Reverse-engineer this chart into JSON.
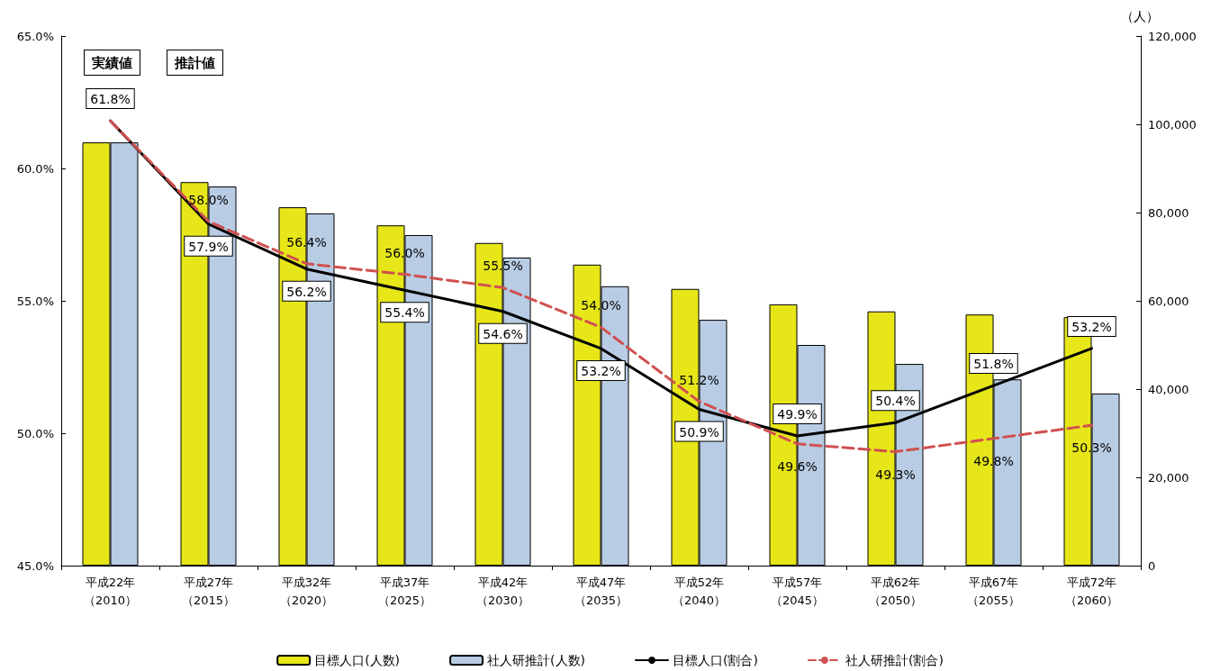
{
  "chart_data": {
    "type": "bar",
    "categories": [
      "平成22年（2010）",
      "平成27年（2015）",
      "平成32年（2020）",
      "平成37年（2025）",
      "平成42年（2030）",
      "平成47年（2035）",
      "平成52年（2040）",
      "平成57年（2045）",
      "平成62年（2050）",
      "平成67年（2055）",
      "平成72年（2060）"
    ],
    "series": [
      {
        "name": "目標人口(人数)",
        "axis": "y2",
        "color": "#e6e619",
        "values": [
          95900,
          86900,
          81200,
          77100,
          73100,
          68200,
          62700,
          59200,
          57600,
          56900,
          56300
        ]
      },
      {
        "name": "社人研推計(人数)",
        "axis": "y2",
        "color": "#b8cce4",
        "values": [
          95900,
          85900,
          79800,
          74900,
          69800,
          63300,
          55700,
          50000,
          45700,
          42200,
          39000
        ]
      },
      {
        "name": "目標人口(割合)",
        "type": "line",
        "color": "#000000",
        "line_style": "solid",
        "values": [
          61.8,
          57.9,
          56.2,
          55.4,
          54.6,
          53.2,
          50.9,
          49.9,
          50.4,
          51.8,
          53.2
        ],
        "value_labels": [
          "61.8%",
          "57.9%",
          "56.2%",
          "55.4%",
          "54.6%",
          "53.2%",
          "50.9%",
          "49.9%",
          "50.4%",
          "51.8%",
          "53.2%"
        ]
      },
      {
        "name": "社人研推計(割合)",
        "type": "line",
        "color": "#d0504f",
        "line_style": "dashed",
        "values": [
          61.8,
          58.0,
          56.4,
          56.0,
          55.5,
          54.0,
          51.2,
          49.6,
          49.3,
          49.8,
          50.3
        ],
        "value_labels": [
          null,
          "58.0%",
          "56.4%",
          "56.0%",
          "55.5%",
          "54.0%",
          "51.2%",
          "49.6%",
          "49.3%",
          "49.8%",
          "50.3%"
        ]
      }
    ],
    "ylim": [
      45,
      65
    ],
    "yticks": [
      {
        "value": 45,
        "label": "45.0%"
      },
      {
        "value": 50,
        "label": "50.0%"
      },
      {
        "value": 55,
        "label": "55.0%"
      },
      {
        "value": 60,
        "label": "60.0%"
      },
      {
        "value": 65,
        "label": "65.0%"
      }
    ],
    "y2label": "（人）",
    "y2lim": [
      0,
      120000
    ],
    "y2ticks": [
      {
        "value": 0,
        "label": "0"
      },
      {
        "value": 20000,
        "label": "20,000"
      },
      {
        "value": 40000,
        "label": "40,000"
      },
      {
        "value": 60000,
        "label": "60,000"
      },
      {
        "value": 80000,
        "label": "80,000"
      },
      {
        "value": 100000,
        "label": "100,000"
      },
      {
        "value": 120000,
        "label": "120,000"
      }
    ],
    "annotations": [
      "実績値",
      "推計値"
    ],
    "marker": "none",
    "grid": false,
    "legend": "bottom"
  }
}
